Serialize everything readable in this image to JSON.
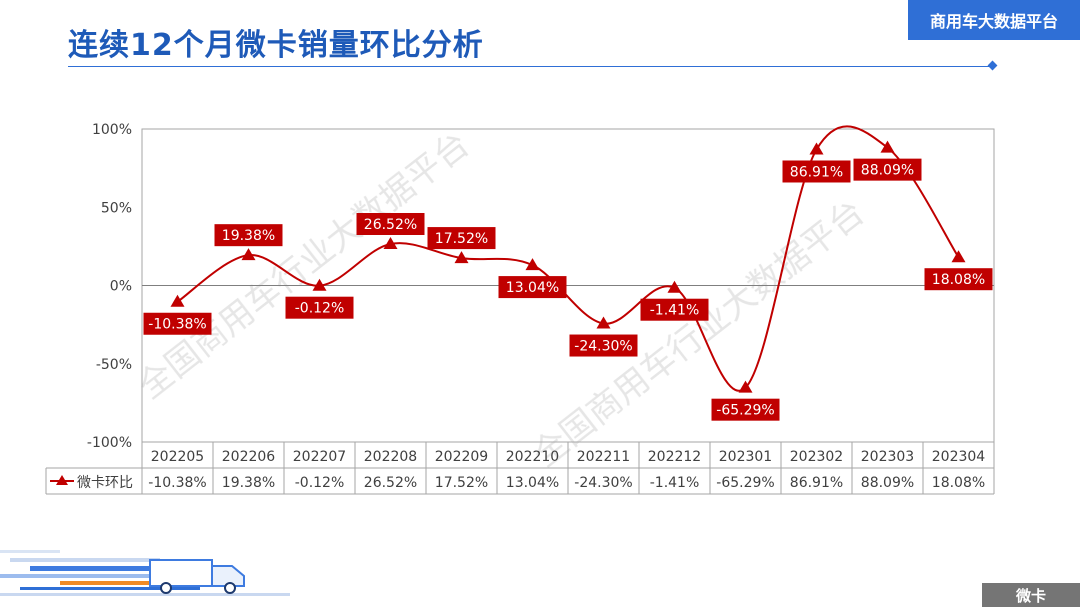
{
  "page": {
    "title": "连续12个月微卡销量环比分析",
    "brand_label": "商用车大数据平台",
    "category_label": "微卡",
    "watermark": "全国商用车行业大数据平台"
  },
  "colors": {
    "title": "#1e5ab8",
    "accent": "#2f6fd6",
    "series": "#c00000",
    "badge_gray": "#757575"
  },
  "chart_data": {
    "type": "line",
    "categories": [
      "202205",
      "202206",
      "202207",
      "202208",
      "202209",
      "202210",
      "202211",
      "202212",
      "202301",
      "202302",
      "202303",
      "202304"
    ],
    "series": [
      {
        "name": "微卡环比",
        "values": [
          -10.38,
          19.38,
          -0.12,
          26.52,
          17.52,
          13.04,
          -24.3,
          -1.41,
          -65.29,
          86.91,
          88.09,
          18.08
        ],
        "labels": [
          "-10.38%",
          "19.38%",
          "-0.12%",
          "26.52%",
          "17.52%",
          "13.04%",
          "-24.30%",
          "-1.41%",
          "-65.29%",
          "86.91%",
          "88.09%",
          "18.08%"
        ],
        "color": "#c00000",
        "marker": "triangle",
        "smooth": true
      }
    ],
    "ylim": [
      -100,
      100
    ],
    "yticks": [
      100,
      50,
      0,
      -50,
      -100
    ],
    "ytick_labels": [
      "100%",
      "50%",
      "0%",
      "-50%",
      "-100%"
    ],
    "grid": false,
    "zero_line": true,
    "data_table": true,
    "legend": "in data table"
  }
}
